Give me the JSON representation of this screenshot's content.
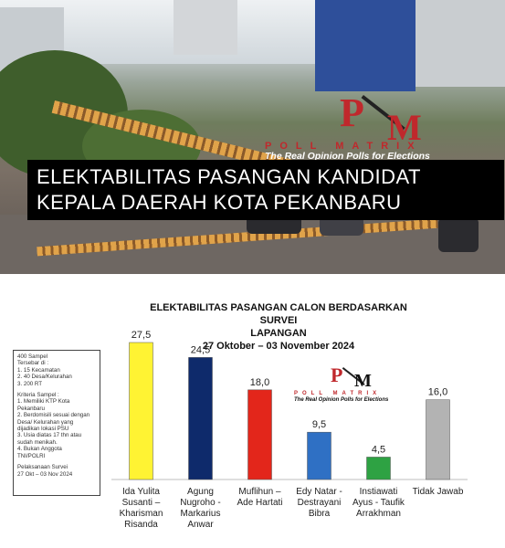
{
  "banner": {
    "title_line1": "ELEKTABILITAS PASANGAN KANDIDAT",
    "title_line2": "KEPALA DAERAH KOTA PEKANBARU"
  },
  "logo": {
    "name": "POLL MATRIX",
    "tagline": "The Real Opinion Polls for Elections",
    "colors": {
      "red": "#c0282c",
      "dark": "#111111"
    }
  },
  "survey_info": {
    "sample": "400 Sampel",
    "spread_label": "Tersebar di :",
    "spread": [
      "1. 15 Kecamatan",
      "2. 40 Desa/Kelurahan",
      "3. 200 RT"
    ],
    "criteria_label": "Kriteria Sampel :",
    "criteria": [
      "1. Memiliki KTP  Kota",
      "    Pekanbaru",
      "2. Berdomisili sesuai dengan",
      "    Desa/ Kelurahan yang",
      "    dijadikan lokasi PSU",
      "3. Usia diatas 17 thn atau",
      "    sudah menikah.",
      "4. Bukan Anggota",
      "    TNI/POLRI"
    ],
    "period_label": "Pelaksanaan Survei",
    "period": "27 Okt – 03 Nov 2024"
  },
  "chart_data": {
    "type": "bar",
    "title_lines": [
      "ELEKTABILITAS PASANGAN CALON BERDASARKAN SURVEI",
      "LAPANGAN",
      "27 Oktober – 03 November 2024"
    ],
    "categories": [
      [
        "Ida Yulita",
        "Susanti –",
        "Kharisman",
        "Risanda"
      ],
      [
        "Agung",
        "Nugroho -",
        "Markarius",
        "Anwar"
      ],
      [
        "Muflihun –",
        "Ade Hartati"
      ],
      [
        "Edy Natar -",
        "Destrayani",
        "Bibra"
      ],
      [
        "Instiawati",
        "Ayus - Taufik",
        "Arrakhman"
      ],
      [
        "Tidak Jawab"
      ]
    ],
    "values": [
      27.5,
      24.5,
      18.0,
      9.5,
      4.5,
      16.0
    ],
    "value_labels": [
      "27,5",
      "24,5",
      "18,0",
      "9,5",
      "4,5",
      "16,0"
    ],
    "colors": [
      "#fff333",
      "#0e2a6b",
      "#e3261b",
      "#2f70c4",
      "#2ea243",
      "#b3b3b3"
    ],
    "ylim": [
      0,
      30
    ],
    "grid": false,
    "xlabel": "",
    "ylabel": ""
  }
}
